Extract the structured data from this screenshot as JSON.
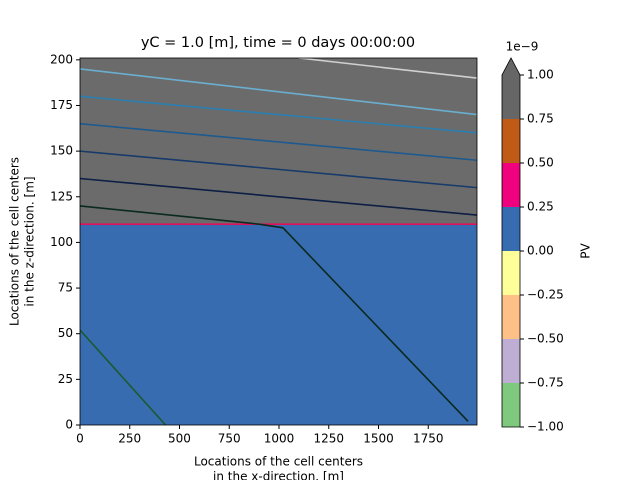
{
  "chart_data": {
    "type": "contourf",
    "title": "yC = 1.0 [m], time = 0 days 00:00:00",
    "xlabel": [
      "Locations of the cell centers",
      "in the x-direction. [m]"
    ],
    "ylabel": [
      "Locations of the cell centers",
      "in the z-direction. [m]"
    ],
    "xlim": [
      0,
      1995
    ],
    "ylim": [
      0,
      201
    ],
    "xticks": [
      0,
      250,
      500,
      750,
      1000,
      1250,
      1500,
      1750
    ],
    "yticks": [
      0,
      25,
      50,
      75,
      100,
      125,
      150,
      175,
      200
    ],
    "regions": [
      {
        "z": [
          0,
          110
        ],
        "color": "#386cb0"
      },
      {
        "z": [
          110,
          201
        ],
        "color": "#6b6b6b"
      }
    ],
    "contours": [
      {
        "color": "#e0105a",
        "x": [
          0,
          1995
        ],
        "y": [
          110,
          110
        ]
      },
      {
        "color": "#d0d0d0",
        "x": [
          1100,
          1995
        ],
        "y": [
          201,
          190
        ]
      },
      {
        "color": "#6aaed0",
        "x": [
          0,
          1995
        ],
        "y": [
          195,
          170
        ]
      },
      {
        "color": "#2a7fb0",
        "x": [
          0,
          1995
        ],
        "y": [
          180,
          160
        ]
      },
      {
        "color": "#1d5a90",
        "x": [
          0,
          1995
        ],
        "y": [
          165,
          145
        ]
      },
      {
        "color": "#163a6a",
        "x": [
          0,
          1995
        ],
        "y": [
          150,
          130
        ]
      },
      {
        "color": "#0d1f45",
        "x": [
          0,
          1995
        ],
        "y": [
          135,
          115
        ]
      },
      {
        "color": "#0a2a20",
        "x": [
          0,
          900,
          1020,
          1950
        ],
        "y": [
          120,
          110,
          108,
          2
        ]
      },
      {
        "color": "#1a5a30",
        "x": [
          0,
          430
        ],
        "y": [
          52,
          0
        ]
      }
    ],
    "colorbar": {
      "label": "PV",
      "offset": "1e−9",
      "extend": "max",
      "extend_color": "#666666",
      "levels": [
        -1,
        -0.75,
        -0.5,
        -0.25,
        0,
        0.25,
        0.5,
        0.75,
        1
      ],
      "colors": [
        "#7fc97f",
        "#beaed4",
        "#fdc086",
        "#ffff99",
        "#386cb0",
        "#f0027f",
        "#bf5b17",
        "#666666"
      ],
      "ticks": [
        {
          "value": -1,
          "label": "−1.00"
        },
        {
          "value": -0.75,
          "label": "−0.75"
        },
        {
          "value": -0.5,
          "label": "−0.50"
        },
        {
          "value": -0.25,
          "label": "−0.25"
        },
        {
          "value": 0,
          "label": "0.00"
        },
        {
          "value": 0.25,
          "label": "0.25"
        },
        {
          "value": 0.5,
          "label": "0.50"
        },
        {
          "value": 0.75,
          "label": "0.75"
        },
        {
          "value": 1,
          "label": "1.00"
        }
      ]
    }
  }
}
